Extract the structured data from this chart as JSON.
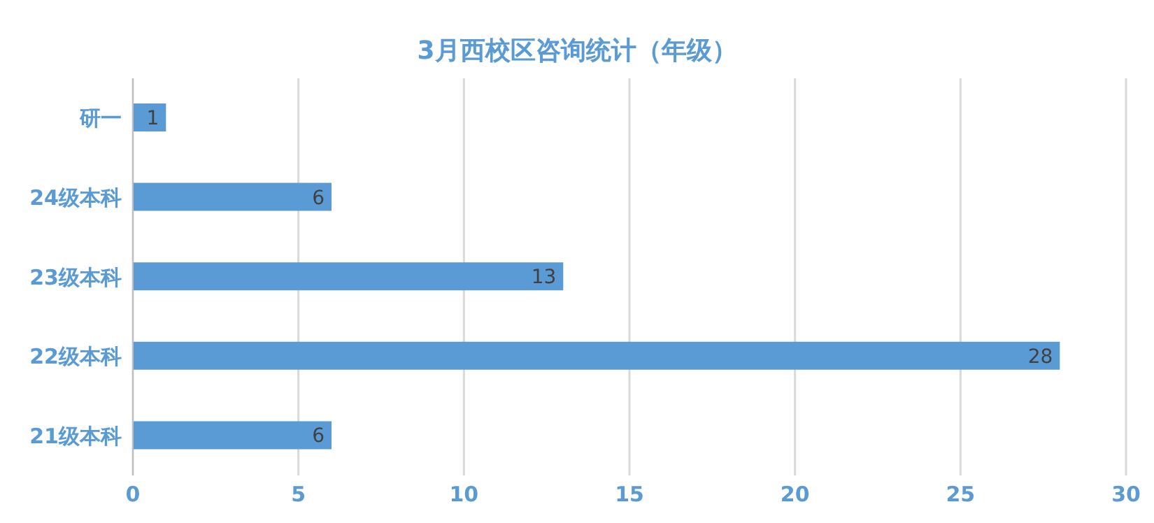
{
  "chart_data": {
    "type": "bar",
    "orientation": "horizontal",
    "title": "3月西校区咨询统计（年级）",
    "categories": [
      "研一",
      "24级本科",
      "23级本科",
      "22级本科",
      "21级本科"
    ],
    "values": [
      1,
      6,
      13,
      28,
      6
    ],
    "color": "#5b9bd5",
    "xlim": [
      0,
      30
    ],
    "xticks": [
      0,
      5,
      10,
      15,
      20,
      25,
      30
    ],
    "grid": "x",
    "data_labels": true
  }
}
